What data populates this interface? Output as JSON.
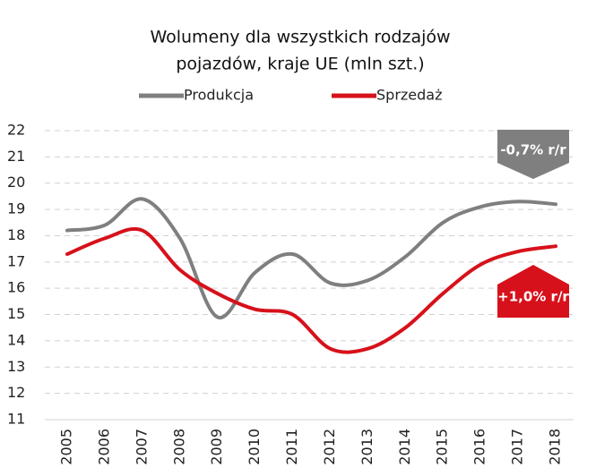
{
  "chart_data": {
    "type": "line",
    "title": [
      "Wolumeny dla wszystkich rodzajów",
      "pojazdów, kraje UE (mln szt.)"
    ],
    "categories": [
      "2005",
      "2006",
      "2007",
      "2008",
      "2009",
      "2010",
      "2011",
      "2012",
      "2013",
      "2014",
      "2015",
      "2016",
      "2017",
      "2018"
    ],
    "series": [
      {
        "name": "Produkcja",
        "color": "#7f7f7f",
        "values": [
          18.2,
          18.4,
          19.4,
          17.9,
          14.9,
          16.6,
          17.3,
          16.2,
          16.3,
          17.2,
          18.5,
          19.1,
          19.3,
          19.2
        ]
      },
      {
        "name": "Sprzedaż",
        "color": "#d7111b",
        "values": [
          17.3,
          17.9,
          18.2,
          16.7,
          15.8,
          15.2,
          15.0,
          13.7,
          13.7,
          14.5,
          15.8,
          16.9,
          17.4,
          17.6
        ]
      }
    ],
    "ylim": [
      11,
      22
    ],
    "yticks": [
      11,
      12,
      13,
      14,
      15,
      16,
      17,
      18,
      19,
      20,
      21,
      22
    ],
    "grid": true,
    "legend": "top",
    "annotations": [
      "-0,7% r/r",
      "+1,0% r/r"
    ]
  }
}
